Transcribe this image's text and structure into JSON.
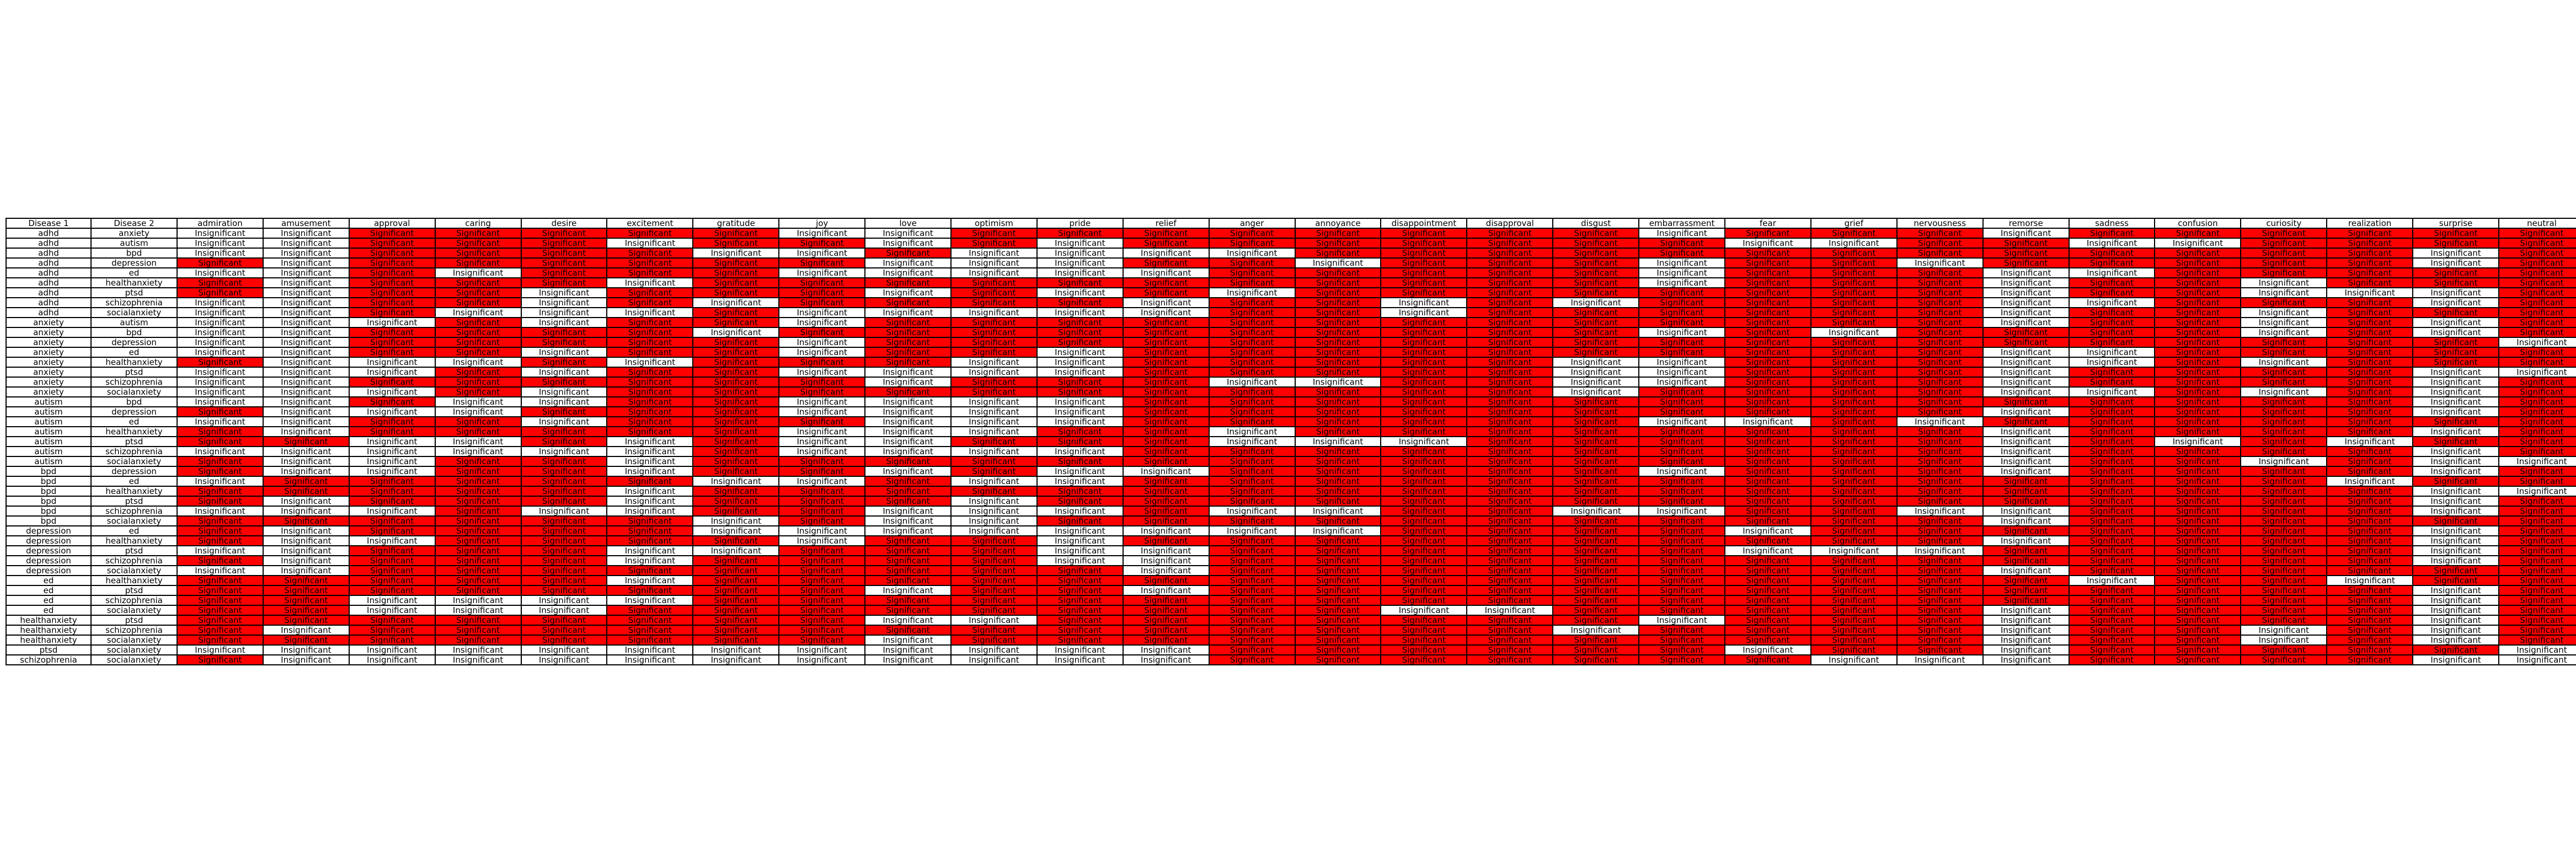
{
  "chart_data": {
    "type": "table",
    "columns": [
      "Disease 1",
      "Disease 2",
      "admiration",
      "amusement",
      "approval",
      "caring",
      "desire",
      "excitement",
      "gratitude",
      "joy",
      "love",
      "optimism",
      "pride",
      "relief",
      "anger",
      "annoyance",
      "disappointment",
      "disapproval",
      "disgust",
      "embarrassment",
      "fear",
      "grief",
      "nervousness",
      "remorse",
      "sadness",
      "confusion",
      "curiosity",
      "realization",
      "surprise",
      "neutral"
    ],
    "legend_values": {
      "S": "Significant",
      "I": "Insignificant"
    },
    "colors": {
      "significant": "#ff0000",
      "insignificant": "#ffffff"
    },
    "rows": [
      [
        "adhd",
        "anxiety",
        "IISSSSSIISSSSSSSSISSSISSSSSS"
      ],
      [
        "adhd",
        "autism",
        "IISSSISSISISSSSSSSIISSIISSSS"
      ],
      [
        "adhd",
        "bpd",
        "IISSSSIISIIIISSSSSSSSSSSSSIS"
      ],
      [
        "adhd",
        "depression",
        "SISSSSSSIIISSISSSISSISSSSSIS"
      ],
      [
        "adhd",
        "ed",
        "IISISSSIIIIISSSSSISSSIISSSSS"
      ],
      [
        "adhd",
        "healthanxiety",
        "SISSSISSSSSSSSSSSISSSISSISSS"
      ],
      [
        "adhd",
        "ptsd",
        "SISSISSSISISISSSSSSSSISSIIIS"
      ],
      [
        "adhd",
        "schizophrenia",
        "IISSISISSSSISSISISSSSIISSSIS"
      ],
      [
        "adhd",
        "socialanxiety",
        "IISIIISIIIIISSISSSSSSISSISSS"
      ],
      [
        "anxiety",
        "autism",
        "IIISISSISSSSSSSSSSSSSISSISIS"
      ],
      [
        "anxiety",
        "bpd",
        "IISSSSISSSSSSSSSSISISSSSISIS"
      ],
      [
        "anxiety",
        "depression",
        "IISSSSSISSSSSSSSSSSSSSSSSSSI"
      ],
      [
        "anxiety",
        "ed",
        "IISSISSISSISSSSSSSSSSIISSSSS"
      ],
      [
        "anxiety",
        "healthanxiety",
        "SIIISISSSIISSSSSIISSSIISISSS"
      ],
      [
        "anxiety",
        "ptsd",
        "IIISISSIIIISSSSSIISSSISSSSII"
      ],
      [
        "anxiety",
        "schizophrenia",
        "IISSSSSSISSSIISSIISSSISSSSIS"
      ],
      [
        "anxiety",
        "socialanxiety",
        "IIISISSSSSSSSSSSISSSSIISISIS"
      ],
      [
        "autism",
        "bpd",
        "IISIISSIIIISSSSSSSSSSSSSSSIS"
      ],
      [
        "autism",
        "depression",
        "SIIISSSIIIISSSSSSSSSSISSSSIS"
      ],
      [
        "autism",
        "ed",
        "IISSISSSIIISSSSSSIISISSSSSSS"
      ],
      [
        "autism",
        "healthanxiety",
        "SISSSSSIIISSISSSSSSSSISSSSIS"
      ],
      [
        "autism",
        "ptsd",
        "SSIISISIISSSIIISSSSSSISISISS"
      ],
      [
        "autism",
        "schizophrenia",
        "IIIIIISIIIISSSSSSSSSSISSSSIS"
      ],
      [
        "autism",
        "socialanxiety",
        "SIISSISSSSSSSSSSSSSSSISSISII"
      ],
      [
        "bpd",
        "depression",
        "SIISSISSISIISSSSSISSSISSSSIS"
      ],
      [
        "bpd",
        "ed",
        "ISSSSSIISIISSSSSSSSSSSSSSISS"
      ],
      [
        "bpd",
        "healthanxiety",
        "SSSSSISSSSSSSSSSSSSSSSSSSSII"
      ],
      [
        "bpd",
        "ptsd",
        "SISSSISSSISSSSSSSSSSSSSSSSIS"
      ],
      [
        "bpd",
        "schizophrenia",
        "IIISIISSIIISIISSIISSIISSSSIS"
      ],
      [
        "bpd",
        "socialanxiety",
        "SSSSSSISIISSSSSSSSSSSISSSSSS"
      ],
      [
        "depression",
        "ed",
        "SISSSSIIIIIIIISSSSISSSSSSSIS"
      ],
      [
        "depression",
        "healthanxiety",
        "SIISSSSISSISSSSSSSSSSISSSSIS"
      ],
      [
        "depression",
        "ptsd",
        "IISSSIISSSIISSSSSSIIISSSSSIS"
      ],
      [
        "depression",
        "schizophrenia",
        "SISSSISSSSIISSSSSSSSSSSSSSIS"
      ],
      [
        "depression",
        "socialanxiety",
        "IISSSSSSSSSISSSSSSSSSISSSSSS"
      ],
      [
        "ed",
        "healthanxiety",
        "SSSSSISSSSSSSSSSSSSSSSISSISS"
      ],
      [
        "ed",
        "ptsd",
        "SSSSSSSSISSISSSSSSSSSSSSSSIS"
      ],
      [
        "ed",
        "schizophrenia",
        "SSIIIISSSSSSSSSSSSSSSSSSSSIS"
      ],
      [
        "ed",
        "socialanxiety",
        "SSIIISSSSSSSSSIISSSSSISSSSIS"
      ],
      [
        "healthanxiety",
        "ptsd",
        "SSSSSSSSIISSSSSSSISSSISSSSIS"
      ],
      [
        "healthanxiety",
        "schizophrenia",
        "SISSSSSSSSSSSSSSISSSSISSISIS"
      ],
      [
        "healthanxiety",
        "socialanxiety",
        "SSSSSSSSISSSSSSSSSSSSISSISIS"
      ],
      [
        "ptsd",
        "socialanxiety",
        "IIIIIIIIIIIISSSSSSISSISSSSSI"
      ],
      [
        "schizophrenia",
        "socialanxiety",
        "SIIIIIIIIIIISSSSSSSIIISSSSII"
      ]
    ]
  }
}
